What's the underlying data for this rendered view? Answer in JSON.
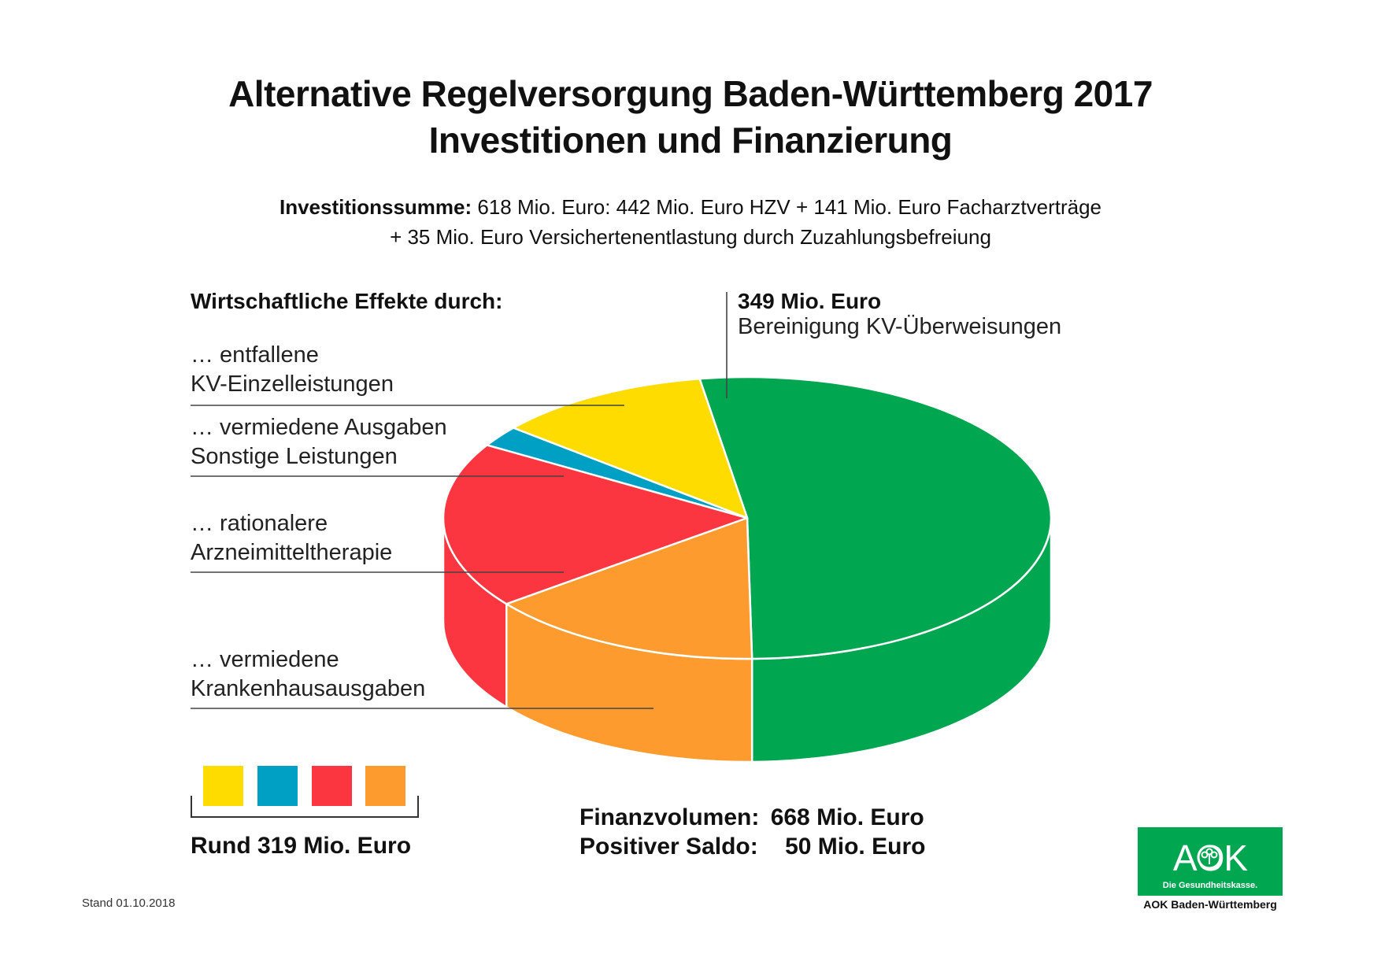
{
  "header": {
    "title_line1": "Alternative Regelversorgung Baden-Württemberg 2017",
    "title_line2": "Investitionen  und  Finanzierung"
  },
  "investment": {
    "label": "Investitionssumme:",
    "line1_rest": " 618 Mio. Euro: 442 Mio. Euro HZV + 141 Mio. Euro Facharztverträge",
    "line2": "+ 35 Mio. Euro Versichertenentlastung durch Zuzahlungsbefreiung"
  },
  "effects": {
    "heading": "Wirtschaftliche Effekte durch:",
    "items": [
      {
        "line1": "… entfallene",
        "line2": "KV-Einzelleistungen"
      },
      {
        "line1": "… vermiedene Ausgaben",
        "line2": "Sonstige Leistungen"
      },
      {
        "line1": "… rationalere",
        "line2": "Arzneimitteltherapie"
      },
      {
        "line1": "… vermiedene",
        "line2": "Krankenhausausgaben"
      }
    ]
  },
  "green_label": {
    "value": "349 Mio. Euro",
    "text": "Bereinigung KV-Überweisungen"
  },
  "legend": {
    "total": "Rund 319 Mio. Euro"
  },
  "totals": {
    "line1_label": "Finanzvolumen:",
    "line1_value": "668 Mio. Euro",
    "line2_label": "Positiver Saldo:",
    "line2_value": "50 Mio. Euro"
  },
  "footer": {
    "stand": "Stand 01.10.2018"
  },
  "logo": {
    "wordmark": "AOK",
    "tagline": "Die Gesundheitskasse.",
    "caption": "AOK Baden-Württemberg"
  },
  "colors": {
    "green": "#00a650",
    "yellow": "#ffdc00",
    "blue": "#009fc4",
    "red": "#fc3640",
    "orange": "#fd9b2f"
  },
  "chart_data": {
    "type": "pie",
    "title": "Alternative Regelversorgung Baden-Württemberg 2017 – Investitionen und Finanzierung",
    "unit": "Mio. Euro",
    "slices": [
      {
        "name": "Bereinigung KV-Überweisungen",
        "value": 349,
        "color": "#00a650"
      },
      {
        "name": "entfallene KV-Einzelleistungen",
        "share_of_319_estimate": 0.24,
        "color": "#ffdc00"
      },
      {
        "name": "vermiedene Ausgaben Sonstige Leistungen",
        "share_of_319_estimate": 0.05,
        "color": "#009fc4"
      },
      {
        "name": "rationalere Arzneimitteltherapie",
        "share_of_319_estimate": 0.4,
        "color": "#fc3640"
      },
      {
        "name": "vermiedene Krankenhausausgaben",
        "share_of_319_estimate": 0.31,
        "color": "#fd9b2f"
      }
    ],
    "group_total": 319,
    "finanzvolumen": 668,
    "positiver_saldo": 50,
    "legend": "bottom-left"
  }
}
